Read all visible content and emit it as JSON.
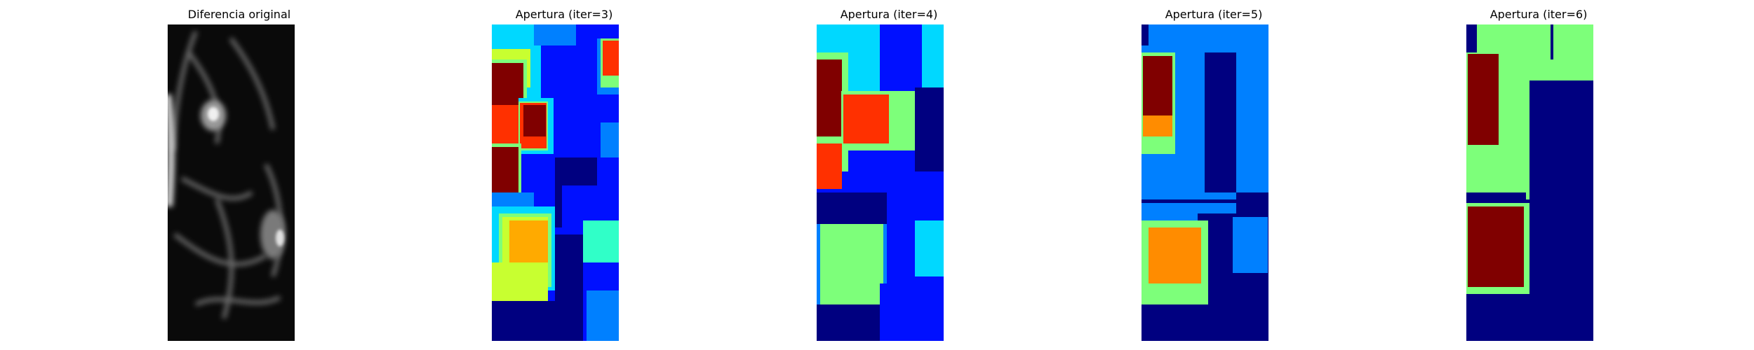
{
  "figure": {
    "panels": [
      {
        "title": "Diferencia original",
        "image": "grayscale difference map"
      },
      {
        "title": "Apertura (iter=3)",
        "image": "jet colormap label regions"
      },
      {
        "title": "Apertura (iter=4)",
        "image": "jet colormap label regions"
      },
      {
        "title": "Apertura (iter=5)",
        "image": "jet colormap label regions"
      },
      {
        "title": "Apertura (iter=6)",
        "image": "jet colormap label regions"
      }
    ],
    "colormap": {
      "navy": "#000080",
      "blue": "#0010ff",
      "medium-blue": "#0080ff",
      "cyan": "#00d8ff",
      "aqua-green": "#30ffc8",
      "light-green": "#7dff7a",
      "yellow-green": "#c8ff30",
      "orange-yellow": "#ffaa00",
      "orange": "#ff8c00",
      "red-orange": "#ff3000",
      "dark-red": "#800000"
    }
  }
}
